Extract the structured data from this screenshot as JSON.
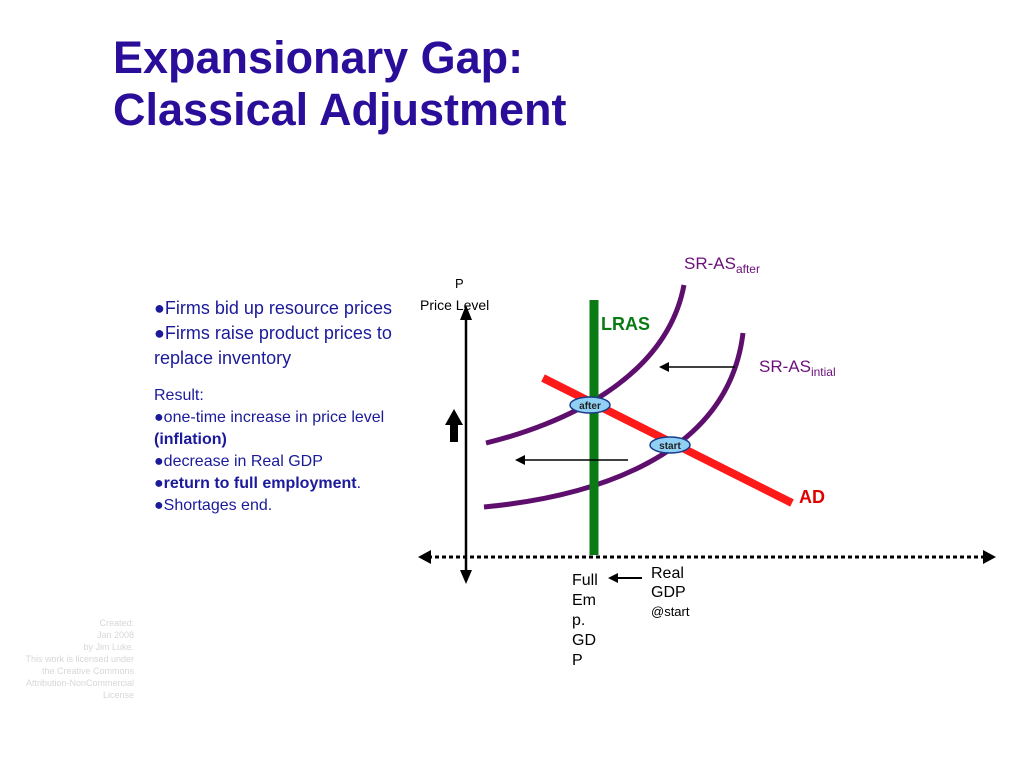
{
  "title": {
    "line1": "Expansionary Gap:",
    "line2": "Classical Adjustment"
  },
  "bullets": {
    "b1": "Firms bid up resource prices",
    "b2": "Firms raise product prices to replace inventory",
    "result_heading": "Result:",
    "r1": "one-time increase in price level ",
    "r1_bold": "(inflation)",
    "r2": "decrease in Real GDP",
    "r3_bold": "return to full employment",
    "r3_tail": ".",
    "r4": "Shortages end.",
    "bullet_char": "●"
  },
  "credit": {
    "line1": "Created:",
    "line2": "Jan 2008",
    "line3": "by Jim Luke.",
    "line4": "This work is licensed under",
    "line5": "the Creative Commons",
    "line6": "Attribution-NonCommercial",
    "line7": "License"
  },
  "diagram": {
    "y_axis_letter": "P",
    "y_axis_label": "Price Level",
    "sras_after_main": "SR-AS",
    "sras_after_sub": "after",
    "lras": "LRAS",
    "sras_initial_main": "SR-AS",
    "sras_initial_sub": "intial",
    "ad": "AD",
    "after_badge": "after",
    "start_badge": "start",
    "full_emp_lines": [
      "Full",
      "Em",
      "p.",
      "GD",
      "P"
    ],
    "real_gdp_line1": "Real",
    "real_gdp_line2": "GDP",
    "real_gdp_line3": "@start",
    "colors": {
      "title": "#2a0e9a",
      "curves": "#5e0f6e",
      "lras": "#0a7a14",
      "ad": "#ff1a1a",
      "ad_label": "#e00000",
      "lras_label": "#0a7a14",
      "badge": "#8fd0f4"
    }
  }
}
